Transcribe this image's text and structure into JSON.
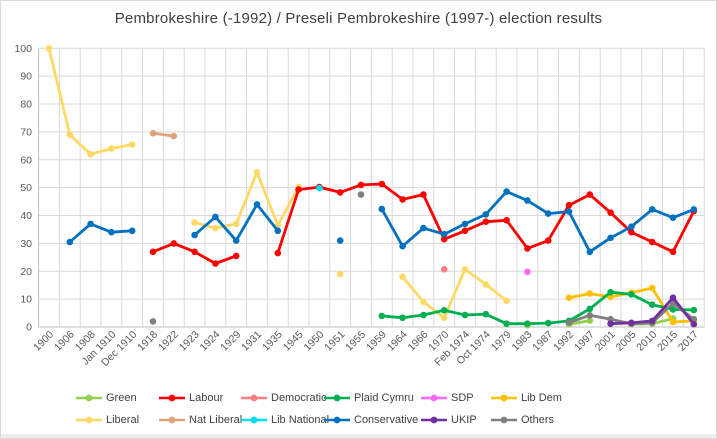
{
  "chart_data": {
    "type": "line",
    "title": "Pembrokeshire (-1992) / Preseli Pembrokeshire (1997-) election results",
    "xlabel": "",
    "ylabel": "",
    "ylim": [
      0,
      100
    ],
    "ytick_step": 10,
    "grid": true,
    "legend_position": "bottom",
    "categories": [
      "1900",
      "1906",
      "1908",
      "Jan 1910",
      "Dec 1910",
      "1918",
      "1922",
      "1923",
      "1924",
      "1929",
      "1931",
      "1935",
      "1945",
      "1950",
      "1951",
      "1955",
      "1959",
      "1964",
      "1966",
      "1970",
      "Feb 1974",
      "Oct 1974",
      "1979",
      "1983",
      "1987",
      "1992",
      "1997",
      "2001",
      "2005",
      "2010",
      "2015",
      "2017"
    ],
    "yticks": [
      0,
      10,
      20,
      30,
      40,
      50,
      60,
      70,
      80,
      90,
      100
    ],
    "series": [
      {
        "name": "Green",
        "color": "#92D050",
        "z": 3,
        "values": [
          null,
          null,
          null,
          null,
          null,
          null,
          null,
          null,
          null,
          null,
          null,
          null,
          null,
          null,
          null,
          null,
          null,
          null,
          null,
          null,
          null,
          null,
          null,
          0.6,
          null,
          1.0,
          2.3,
          null,
          1.0,
          1.2,
          3.0,
          null
        ]
      },
      {
        "name": "Labour",
        "color": "#FF0000",
        "z": 9,
        "values": [
          null,
          null,
          null,
          null,
          null,
          27,
          30,
          27,
          22.8,
          25.5,
          null,
          26.5,
          49.3,
          50.2,
          48.3,
          51,
          51.3,
          45.8,
          47.5,
          31.5,
          34.5,
          37.8,
          38.3,
          28.2,
          31,
          43.7,
          47.5,
          41,
          34,
          30.5,
          27,
          41.6
        ]
      },
      {
        "name": "Democratic",
        "color": "#FF7C80",
        "z": 4,
        "values": [
          null,
          null,
          null,
          null,
          null,
          null,
          null,
          null,
          null,
          null,
          null,
          null,
          null,
          null,
          null,
          null,
          null,
          null,
          null,
          20.7,
          null,
          null,
          null,
          null,
          null,
          null,
          null,
          null,
          null,
          null,
          null,
          null
        ]
      },
      {
        "name": "Plaid Cymru",
        "color": "#00B050",
        "z": 7,
        "values": [
          null,
          null,
          null,
          null,
          null,
          null,
          null,
          null,
          null,
          null,
          null,
          null,
          null,
          null,
          null,
          null,
          4,
          3.3,
          4.3,
          6,
          4.3,
          4.6,
          1.2,
          1.2,
          1.4,
          2.2,
          6.5,
          12.5,
          11.7,
          8,
          6.3,
          6.1
        ]
      },
      {
        "name": "SDP",
        "color": "#FF66FF",
        "z": 5,
        "values": [
          null,
          null,
          null,
          null,
          null,
          null,
          null,
          null,
          null,
          null,
          null,
          null,
          null,
          null,
          null,
          null,
          null,
          null,
          null,
          null,
          null,
          null,
          null,
          19.8,
          null,
          null,
          null,
          null,
          null,
          null,
          null,
          null
        ]
      },
      {
        "name": "Lib Dem",
        "color": "#FFC000",
        "z": 6,
        "values": [
          null,
          null,
          null,
          null,
          null,
          null,
          null,
          null,
          null,
          null,
          null,
          null,
          null,
          null,
          null,
          null,
          null,
          null,
          null,
          null,
          null,
          null,
          null,
          null,
          null,
          10.5,
          12,
          10.8,
          12.3,
          14,
          1.8,
          2.2
        ]
      },
      {
        "name": "Liberal",
        "color": "#FFD966",
        "z": 1,
        "values": [
          100,
          69,
          62,
          64,
          65.5,
          null,
          null,
          37.5,
          35.5,
          37,
          55.5,
          36.5,
          50.3,
          null,
          19,
          null,
          null,
          18,
          9,
          3.3,
          20.7,
          15.3,
          9.4,
          null,
          null,
          null,
          null,
          null,
          null,
          null,
          null,
          null
        ]
      },
      {
        "name": "Nat Liberal",
        "color": "#E2A379",
        "z": 2,
        "values": [
          null,
          null,
          null,
          null,
          null,
          69.5,
          68.5,
          null,
          null,
          null,
          null,
          null,
          null,
          null,
          null,
          null,
          null,
          null,
          null,
          null,
          null,
          null,
          null,
          null,
          null,
          null,
          null,
          null,
          null,
          null,
          null,
          null
        ]
      },
      {
        "name": "Lib National",
        "color": "#00E0F0",
        "z": 11,
        "values": [
          null,
          null,
          null,
          null,
          null,
          null,
          null,
          null,
          null,
          null,
          null,
          null,
          null,
          49.8,
          null,
          null,
          null,
          null,
          null,
          null,
          null,
          null,
          null,
          null,
          null,
          null,
          null,
          null,
          null,
          null,
          null,
          null
        ]
      },
      {
        "name": "Conservative",
        "color": "#0070C0",
        "z": 10,
        "values": [
          null,
          30.5,
          37,
          34,
          34.5,
          null,
          null,
          33,
          39.5,
          31,
          44,
          34.5,
          null,
          null,
          31,
          null,
          42.3,
          29,
          35.5,
          33.3,
          37,
          40.4,
          48.6,
          45.4,
          40.7,
          41.4,
          27,
          32,
          36,
          42.2,
          39.2,
          42.2
        ]
      },
      {
        "name": "UKIP",
        "color": "#7030A0",
        "z": 12,
        "values": [
          null,
          null,
          null,
          null,
          null,
          null,
          null,
          null,
          null,
          null,
          null,
          null,
          null,
          null,
          null,
          null,
          null,
          null,
          null,
          null,
          null,
          null,
          null,
          null,
          null,
          null,
          null,
          1.2,
          1.5,
          2.2,
          10.5,
          1.0
        ]
      },
      {
        "name": "Others",
        "color": "#808080",
        "z": 8,
        "values": [
          null,
          null,
          null,
          null,
          null,
          2,
          null,
          null,
          null,
          null,
          null,
          null,
          null,
          null,
          null,
          47.5,
          null,
          null,
          null,
          null,
          null,
          null,
          null,
          null,
          null,
          1.6,
          4.2,
          2.8,
          1.2,
          1.5,
          8.5,
          2.8
        ]
      }
    ]
  }
}
